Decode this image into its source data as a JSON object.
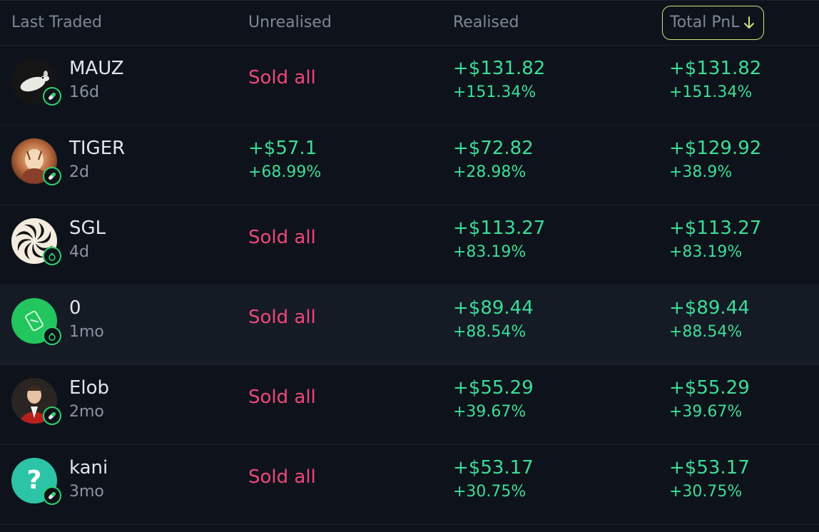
{
  "header": {
    "last_traded": "Last Traded",
    "unrealised": "Unrealised",
    "realised": "Realised",
    "total_pnl": "Total PnL"
  },
  "colors": {
    "positive": "#3ddc97",
    "sold_all": "#f0467a",
    "sort_outline": "#c8e57a"
  },
  "rows": [
    {
      "name": "MAUZ",
      "age": "16d",
      "unrealised": "Sold all",
      "realised": "+$131.82",
      "realised_pct": "+151.34%",
      "total": "+$131.82",
      "total_pct": "+151.34%",
      "badge": "pill-icon"
    },
    {
      "name": "TIGER",
      "age": "2d",
      "unrealised": "+$57.1",
      "unrealised_pct": "+68.99%",
      "realised": "+$72.82",
      "realised_pct": "+28.98%",
      "total": "+$129.92",
      "total_pct": "+38.9%",
      "badge": "pill-icon"
    },
    {
      "name": "SGL",
      "age": "4d",
      "unrealised": "Sold all",
      "realised": "+$113.27",
      "realised_pct": "+83.19%",
      "total": "+$113.27",
      "total_pct": "+83.19%",
      "badge": "money-bag-icon"
    },
    {
      "name": "0",
      "age": "1mo",
      "unrealised": "Sold all",
      "realised": "+$89.44",
      "realised_pct": "+88.54%",
      "total": "+$89.44",
      "total_pct": "+88.54%",
      "badge": "money-bag-icon"
    },
    {
      "name": "Elob",
      "age": "2mo",
      "unrealised": "Sold all",
      "realised": "+$55.29",
      "realised_pct": "+39.67%",
      "total": "+$55.29",
      "total_pct": "+39.67%",
      "badge": "pill-icon"
    },
    {
      "name": "kani",
      "age": "3mo",
      "unrealised": "Sold all",
      "realised": "+$53.17",
      "realised_pct": "+30.75%",
      "total": "+$53.17",
      "total_pct": "+30.75%",
      "badge": "pill-icon"
    }
  ],
  "avatar_placeholder": "?"
}
